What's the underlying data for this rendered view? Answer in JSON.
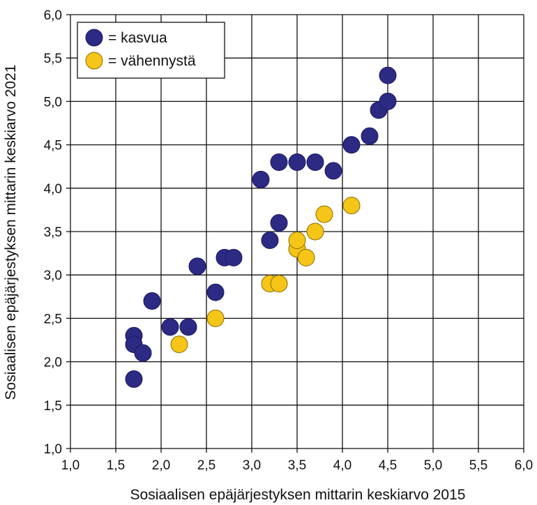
{
  "chart_data": {
    "type": "scatter",
    "title": "",
    "xlabel": "Sosiaalisen epäjärjestyksen mittarin keskiarvo 2015",
    "ylabel": "Sosiaalisen epäjärjestyksen mittarin keskiarvo 2021",
    "xlim": [
      1.0,
      6.0
    ],
    "ylim": [
      1.0,
      6.0
    ],
    "x_ticks": [
      "1,0",
      "1,5",
      "2,0",
      "2,5",
      "3,0",
      "3,5",
      "4,0",
      "4,5",
      "5,0",
      "5,5",
      "6,0"
    ],
    "y_ticks": [
      "1,0",
      "1,5",
      "2,0",
      "2,5",
      "3,0",
      "3,5",
      "4,0",
      "4,5",
      "5,0",
      "5,5",
      "6,0"
    ],
    "grid": true,
    "legend_position": "top-left",
    "series": [
      {
        "name": "= kasvua",
        "color": "#2d2a84",
        "points": [
          [
            1.7,
            1.8
          ],
          [
            1.7,
            2.3
          ],
          [
            1.7,
            2.2
          ],
          [
            1.8,
            2.1
          ],
          [
            1.9,
            2.7
          ],
          [
            2.1,
            2.4
          ],
          [
            2.3,
            2.4
          ],
          [
            2.4,
            3.1
          ],
          [
            2.6,
            2.8
          ],
          [
            2.7,
            3.2
          ],
          [
            2.8,
            3.2
          ],
          [
            3.1,
            4.1
          ],
          [
            3.2,
            3.4
          ],
          [
            3.3,
            3.6
          ],
          [
            3.3,
            4.3
          ],
          [
            3.5,
            4.3
          ],
          [
            3.7,
            4.3
          ],
          [
            3.9,
            4.2
          ],
          [
            4.1,
            4.5
          ],
          [
            4.3,
            4.6
          ],
          [
            4.4,
            4.9
          ],
          [
            4.5,
            5.0
          ],
          [
            4.5,
            5.3
          ]
        ]
      },
      {
        "name": "= vähennystä",
        "color": "#f5c518",
        "points": [
          [
            2.2,
            2.2
          ],
          [
            2.6,
            2.5
          ],
          [
            3.2,
            2.9
          ],
          [
            3.3,
            2.9
          ],
          [
            3.5,
            3.3
          ],
          [
            3.5,
            3.4
          ],
          [
            3.6,
            3.2
          ],
          [
            3.7,
            3.5
          ],
          [
            3.8,
            3.7
          ],
          [
            4.1,
            3.8
          ]
        ]
      }
    ]
  }
}
